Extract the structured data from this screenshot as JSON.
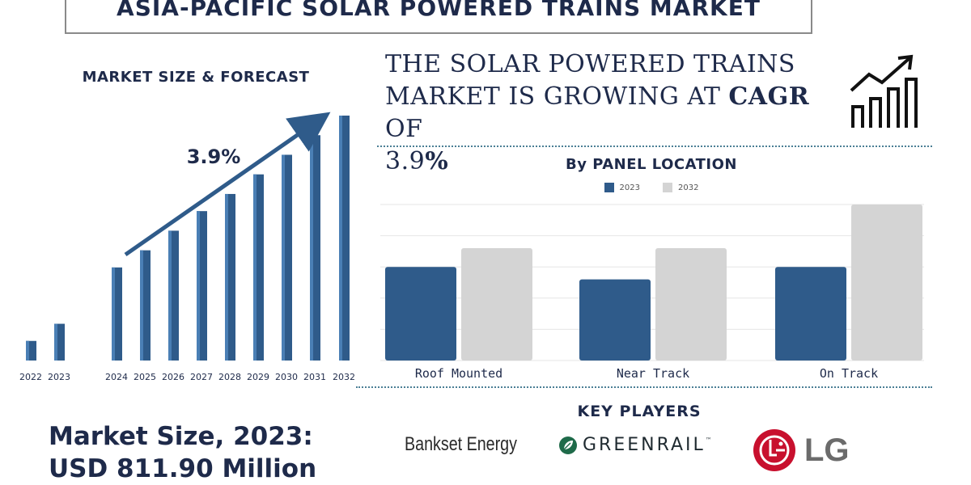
{
  "title": "ASIA-PACIFIC SOLAR POWERED TRAINS MARKET",
  "left_panel": {
    "subtitle": "MARKET SIZE & FORECAST",
    "cagr_label": "3.9%"
  },
  "headline": {
    "line1": "THE SOLAR POWERED TRAINS",
    "line2_pre": "MARKET IS GROWING AT ",
    "line2_bold": "CAGR",
    "line2_post": " OF",
    "line3_num": "3.9",
    "line3_pct": "%"
  },
  "panel_location": {
    "title": "By PANEL LOCATION",
    "legend": [
      "2023",
      "2032"
    ]
  },
  "key_players": {
    "title": "KEY PLAYERS",
    "logos": [
      "Bankset Energy",
      "GREENRAIL",
      "LG"
    ]
  },
  "market_size": {
    "line1": "Market Size, 2023:",
    "line2": "USD 811.90 Million"
  },
  "colors": {
    "navy": "#1e2a4a",
    "bar_blue": "#2f5b8a",
    "bar_grey": "#d4d4d4",
    "accent_line": "#4b7f95"
  },
  "chart_data": [
    {
      "type": "bar",
      "title": "MARKET SIZE & FORECAST",
      "categories": [
        "2022",
        "2023",
        "2024",
        "2025",
        "2026",
        "2027",
        "2028",
        "2029",
        "2030",
        "2031",
        "2032"
      ],
      "values": [
        8,
        15,
        38,
        45,
        53,
        61,
        68,
        76,
        84,
        92,
        100
      ],
      "annotation": "3.9%",
      "ylim": [
        0,
        100
      ],
      "grid": false
    },
    {
      "type": "bar",
      "title": "By PANEL LOCATION",
      "categories": [
        "Roof Mounted",
        "Near Track",
        "On Track"
      ],
      "series": [
        {
          "name": "2023",
          "values": [
            60,
            52,
            60
          ]
        },
        {
          "name": "2032",
          "values": [
            72,
            72,
            100
          ]
        }
      ],
      "ylim": [
        0,
        100
      ],
      "grid": true,
      "legend": "top-center"
    }
  ]
}
